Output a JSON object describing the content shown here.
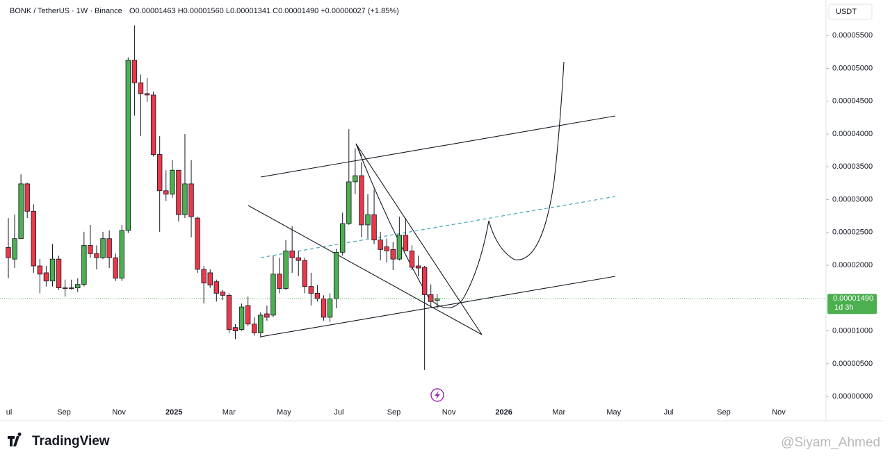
{
  "chart_data": {
    "type": "candlestick",
    "title": "BONK / TetherUS · 1W · Binance",
    "subtitle": "O0.00001463 H0.00001560 L0.00001341 C0.00001490 +0.00000027 (+1.85%)",
    "axis_unit": "USDT",
    "up_color": "#4caf50",
    "down_color": "#e8394a",
    "open": [
      2.271e-05,
      2.094e-05,
      2.406e-05,
      3.24e-05,
      2.823e-05,
      1.99e-05,
      1.885e-05,
      1.76e-05,
      2.094e-05,
      1.656e-05,
      1.656e-05,
      1.656e-05,
      1.708e-05,
      2.302e-05,
      2.177e-05,
      2.115e-05,
      2.406e-05,
      2.115e-05,
      1.802e-05,
      2.531e-05,
      5.125e-05,
      4.781e-05,
      4.615e-05,
      4.594e-05,
      3.688e-05,
      3.135e-05,
      3.083e-05,
      3.448e-05,
      2.771e-05,
      3.24e-05,
      2.719e-05,
      1.938e-05,
      1.885e-05,
      1.75e-05,
      1.594e-05,
      1.542e-05,
      1.052e-05,
      1.021e-05,
      1.385e-05,
      1.104e-05,
      9.69e-06,
      1.26e-05,
      1.24e-05,
      1.865e-05,
      1.646e-05,
      2.219e-05,
      2.115e-05,
      2.073e-05,
      1.677e-05,
      1.573e-05,
      1.49e-05,
      1.208e-05,
      1.49e-05,
      2.198e-05,
      2.635e-05,
      3.271e-05,
      3.365e-05,
      2.615e-05,
      2.771e-05,
      2.385e-05,
      2.281e-05,
      2.24e-05,
      2.094e-05,
      2.458e-05,
      2.219e-05,
      1.99e-05,
      1.969e-05,
      1.552e-05,
      1.463e-05
    ],
    "high": [
      2.719e-05,
      2.771e-05,
      3.385e-05,
      3.26e-05,
      2.927e-05,
      2.094e-05,
      1.99e-05,
      2.323e-05,
      2.146e-05,
      1.781e-05,
      1.781e-05,
      1.802e-05,
      2.51e-05,
      2.615e-05,
      2.302e-05,
      2.51e-05,
      2.531e-05,
      2.177e-05,
      2.615e-05,
      5.167e-05,
      5.656e-05,
      4.906e-05,
      4.854e-05,
      4.646e-05,
      3.969e-05,
      3.448e-05,
      3.604e-05,
      3.448e-05,
      4e-05,
      3.604e-05,
      2.74e-05,
      1.99e-05,
      1.938e-05,
      1.781e-05,
      1.625e-05,
      1.573e-05,
      1.104e-05,
      1.417e-05,
      1.521e-05,
      1.208e-05,
      1.281e-05,
      1.385e-05,
      2.146e-05,
      2.115e-05,
      2.385e-05,
      2.594e-05,
      2.219e-05,
      2.115e-05,
      1.885e-05,
      1.698e-05,
      1.542e-05,
      1.573e-05,
      2.25e-05,
      2.802e-05,
      4.073e-05,
      3.781e-05,
      3.573e-05,
      3.083e-05,
      3.156e-05,
      2.51e-05,
      2.406e-05,
      2.354e-05,
      2.74e-05,
      2.719e-05,
      2.302e-05,
      2.146e-05,
      1.99e-05,
      1.708e-05,
      1.56e-05
    ],
    "low": [
      1.802e-05,
      1.958e-05,
      2.406e-05,
      2.719e-05,
      1.885e-05,
      1.573e-05,
      1.677e-05,
      1.677e-05,
      1.625e-05,
      1.521e-05,
      1.625e-05,
      1.594e-05,
      1.677e-05,
      2.115e-05,
      1.938e-05,
      2.094e-05,
      1.958e-05,
      1.76e-05,
      1.76e-05,
      2.49e-05,
      4.281e-05,
      3.969e-05,
      4.49e-05,
      3.656e-05,
      2.51e-05,
      2.979e-05,
      3.031e-05,
      2.667e-05,
      2.719e-05,
      2.427e-05,
      1.885e-05,
      1.417e-05,
      1.656e-05,
      1.448e-05,
      1.469e-05,
      9.69e-06,
      8.75e-06,
      1e-05,
      1.073e-05,
      9.27e-06,
      8.96e-06,
      1.156e-05,
      1.208e-05,
      1.573e-05,
      1.625e-05,
      1.885e-05,
      1.833e-05,
      1.573e-05,
      1.385e-05,
      1.448e-05,
      1.156e-05,
      1.135e-05,
      1.344e-05,
      2.146e-05,
      2.615e-05,
      3.083e-05,
      2.427e-05,
      2.406e-05,
      2.323e-05,
      2.073e-05,
      2.042e-05,
      1.927e-05,
      2.073e-05,
      2.219e-05,
      1.927e-05,
      1.833e-05,
      4.06e-06,
      1.365e-05,
      1.341e-05
    ],
    "close": [
      2.115e-05,
      2.406e-05,
      3.24e-05,
      2.823e-05,
      1.99e-05,
      1.865e-05,
      1.76e-05,
      2.094e-05,
      1.656e-05,
      1.646e-05,
      1.65e-05,
      1.708e-05,
      2.302e-05,
      2.177e-05,
      2.115e-05,
      2.406e-05,
      2.115e-05,
      1.802e-05,
      2.531e-05,
      5.125e-05,
      4.781e-05,
      4.615e-05,
      4.594e-05,
      3.688e-05,
      3.135e-05,
      3.083e-05,
      3.448e-05,
      2.771e-05,
      3.24e-05,
      2.74e-05,
      1.938e-05,
      1.729e-05,
      1.698e-05,
      1.573e-05,
      1.542e-05,
      1.021e-05,
      1e-05,
      1.365e-05,
      1.104e-05,
      9.69e-06,
      1.24e-05,
      1.208e-05,
      1.865e-05,
      1.646e-05,
      2.219e-05,
      2.115e-05,
      2.073e-05,
      1.677e-05,
      1.573e-05,
      1.49e-05,
      1.208e-05,
      1.49e-05,
      2.198e-05,
      2.635e-05,
      3.271e-05,
      3.365e-05,
      2.615e-05,
      2.771e-05,
      2.385e-05,
      2.24e-05,
      2.219e-05,
      2.094e-05,
      2.458e-05,
      2.219e-05,
      1.969e-05,
      1.958e-05,
      1.552e-05,
      1.448e-05,
      1.49e-05
    ],
    "ylim": [
      -9.4e-07,
      6.042e-05
    ],
    "yticks": [
      {
        "value": 0,
        "label": "0.00000000"
      },
      {
        "value": 5e-06,
        "label": "0.00000500"
      },
      {
        "value": 1e-05,
        "label": "0.00001000"
      },
      {
        "value": 2e-05,
        "label": "0.00002000"
      },
      {
        "value": 2.5e-05,
        "label": "0.00002500"
      },
      {
        "value": 3e-05,
        "label": "0.00003000"
      },
      {
        "value": 3.5e-05,
        "label": "0.00003500"
      },
      {
        "value": 4e-05,
        "label": "0.00004000"
      },
      {
        "value": 4.5e-05,
        "label": "0.00004500"
      },
      {
        "value": 5e-05,
        "label": "0.00005000"
      },
      {
        "value": 5.5e-05,
        "label": "0.00005500"
      }
    ],
    "last_price": {
      "value": 1.49e-05,
      "label": "0.00001490"
    },
    "countdown": "1d 3h",
    "xticks": [
      "ul",
      "Sep",
      "Nov",
      "2025",
      "Mar",
      "May",
      "Jul",
      "Sep",
      "Nov",
      "2026",
      "Mar",
      "May",
      "Jul",
      "Sep",
      "Nov"
    ]
  },
  "footer": {
    "brand": "TradingView",
    "watermark": "@Siyam_Ahmed"
  }
}
